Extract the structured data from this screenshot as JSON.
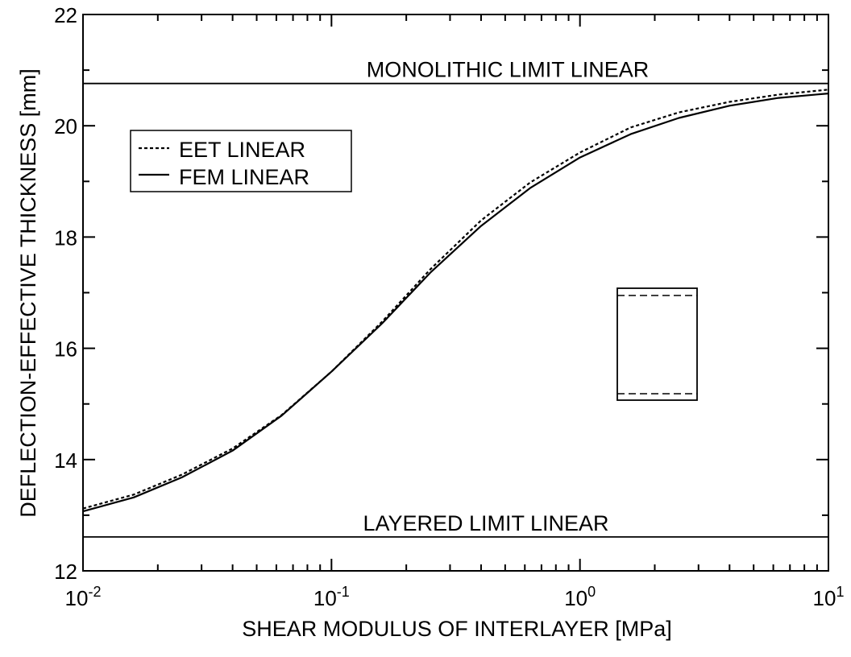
{
  "chart_data": {
    "type": "line",
    "xlabel": "SHEAR MODULUS OF INTERLAYER [MPa]",
    "ylabel": "DEFLECTION-EFFECTIVE THICKNESS [mm]",
    "x_scale": "log",
    "xlim": [
      0.01,
      10
    ],
    "ylim": [
      12,
      22
    ],
    "x_ticks": [
      {
        "base": "10",
        "exp": "-2"
      },
      {
        "base": "10",
        "exp": "-1"
      },
      {
        "base": "10",
        "exp": "0"
      },
      {
        "base": "10",
        "exp": "1"
      }
    ],
    "y_ticks": [
      "12",
      "14",
      "16",
      "18",
      "20",
      "22"
    ],
    "grid": false,
    "legend_position": "upper-left",
    "series": [
      {
        "name": "EET LINEAR",
        "style": "dotted",
        "x": [
          0.01,
          0.016,
          0.025,
          0.04,
          0.063,
          0.1,
          0.16,
          0.25,
          0.4,
          0.63,
          1.0,
          1.6,
          2.5,
          4.0,
          6.3,
          10.0
        ],
        "y": [
          13.12,
          13.37,
          13.73,
          14.2,
          14.8,
          15.58,
          16.48,
          17.42,
          18.3,
          18.98,
          19.52,
          19.97,
          20.24,
          20.43,
          20.56,
          20.65
        ]
      },
      {
        "name": "FEM LINEAR",
        "style": "solid",
        "x": [
          0.01,
          0.016,
          0.025,
          0.04,
          0.063,
          0.1,
          0.16,
          0.25,
          0.4,
          0.63,
          1.0,
          1.6,
          2.5,
          4.0,
          6.3,
          10.0
        ],
        "y": [
          13.07,
          13.32,
          13.68,
          14.16,
          14.79,
          15.58,
          16.45,
          17.36,
          18.2,
          18.88,
          19.43,
          19.85,
          20.14,
          20.36,
          20.5,
          20.58
        ]
      }
    ],
    "reference_lines": [
      {
        "label": "MONOLITHIC LIMIT LINEAR",
        "y": 20.76
      },
      {
        "label": "LAYERED LIMIT LINEAR",
        "y": 12.61
      }
    ],
    "inset_icon": "laminated-glass-cross-section"
  }
}
